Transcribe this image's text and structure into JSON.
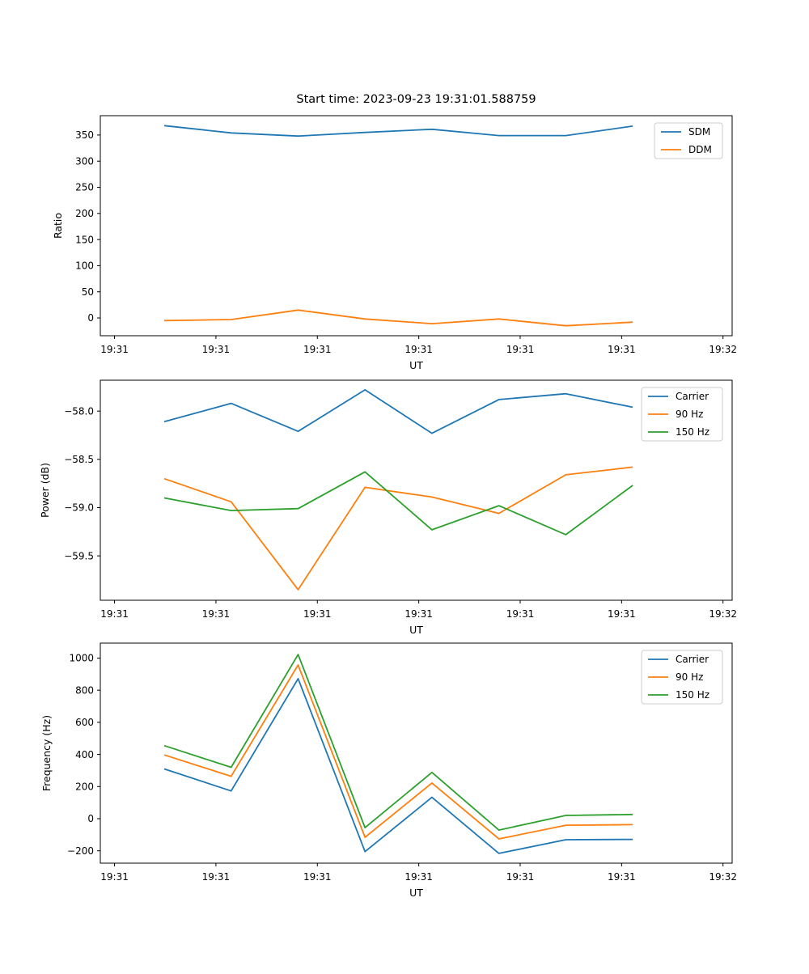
{
  "figure": {
    "background_color": "#ffffff",
    "axis_color": "#000000"
  },
  "chart_data": [
    {
      "type": "line",
      "title": "Start time: 2023-09-23 19:31:01.588759",
      "xlabel": "UT",
      "ylabel": "Ratio",
      "grid": false,
      "legend_position": "upper right",
      "x": {
        "xlim_seconds": [
          -1.4,
          60.9
        ],
        "tick_values_seconds": [
          0,
          10,
          20,
          30,
          40,
          50,
          60
        ],
        "tick_labels": [
          "19:31",
          "19:31",
          "19:31",
          "19:31",
          "19:31",
          "19:31",
          "19:32"
        ],
        "values_seconds": [
          4.9,
          11.5,
          18.1,
          24.7,
          31.3,
          37.9,
          44.5,
          51.1
        ]
      },
      "y": {
        "ylim": [
          -34,
          387
        ],
        "tick_values": [
          0,
          50,
          100,
          150,
          200,
          250,
          300,
          350
        ],
        "tick_labels": [
          "0",
          "50",
          "100",
          "150",
          "200",
          "250",
          "300",
          "350"
        ]
      },
      "series": [
        {
          "name": "SDM",
          "color": "#1f77b4",
          "values": [
            368,
            354,
            348,
            355,
            361,
            349,
            349,
            367
          ]
        },
        {
          "name": "DDM",
          "color": "#ff7f0e",
          "values": [
            -5,
            -3,
            15,
            -2,
            -11,
            -2,
            -15,
            -8
          ]
        }
      ]
    },
    {
      "type": "line",
      "title": "",
      "xlabel": "UT",
      "ylabel": "Power (dB)",
      "grid": false,
      "legend_position": "upper right",
      "x": {
        "xlim_seconds": [
          -1.4,
          60.9
        ],
        "tick_values_seconds": [
          0,
          10,
          20,
          30,
          40,
          50,
          60
        ],
        "tick_labels": [
          "19:31",
          "19:31",
          "19:31",
          "19:31",
          "19:31",
          "19:31",
          "19:32"
        ],
        "values_seconds": [
          4.9,
          11.5,
          18.1,
          24.7,
          31.3,
          37.9,
          44.5,
          51.1
        ]
      },
      "y": {
        "ylim": [
          -59.96,
          -57.68
        ],
        "tick_values": [
          -58.0,
          -58.5,
          -59.0,
          -59.5
        ],
        "tick_labels": [
          "−58.0",
          "−58.5",
          "−59.0",
          "−59.5"
        ]
      },
      "series": [
        {
          "name": "Carrier",
          "color": "#1f77b4",
          "values": [
            -58.11,
            -57.92,
            -58.21,
            -57.78,
            -58.23,
            -57.88,
            -57.82,
            -57.96
          ]
        },
        {
          "name": "90 Hz",
          "color": "#ff7f0e",
          "values": [
            -58.7,
            -58.94,
            -59.85,
            -58.79,
            -58.89,
            -59.06,
            -58.66,
            -58.58
          ]
        },
        {
          "name": "150 Hz",
          "color": "#2ca02c",
          "values": [
            -58.9,
            -59.03,
            -59.01,
            -58.63,
            -59.23,
            -58.98,
            -59.28,
            -58.77
          ]
        }
      ]
    },
    {
      "type": "line",
      "title": "",
      "xlabel": "UT",
      "ylabel": "Frequency (Hz)",
      "grid": false,
      "legend_position": "upper right",
      "x": {
        "xlim_seconds": [
          -1.4,
          60.9
        ],
        "tick_values_seconds": [
          0,
          10,
          20,
          30,
          40,
          50,
          60
        ],
        "tick_labels": [
          "19:31",
          "19:31",
          "19:31",
          "19:31",
          "19:31",
          "19:31",
          "19:32"
        ],
        "values_seconds": [
          4.9,
          11.5,
          18.1,
          24.7,
          31.3,
          37.9,
          44.5,
          51.1
        ]
      },
      "y": {
        "ylim": [
          -277,
          1093
        ],
        "tick_values": [
          -200,
          0,
          200,
          400,
          600,
          800,
          1000
        ],
        "tick_labels": [
          "−200",
          "0",
          "200",
          "400",
          "600",
          "800",
          "1000"
        ]
      },
      "series": [
        {
          "name": "Carrier",
          "color": "#1f77b4",
          "values": [
            310,
            173,
            872,
            -205,
            133,
            -216,
            -131,
            -129
          ]
        },
        {
          "name": "90 Hz",
          "color": "#ff7f0e",
          "values": [
            397,
            264,
            957,
            -116,
            222,
            -126,
            -41,
            -37
          ]
        },
        {
          "name": "150 Hz",
          "color": "#2ca02c",
          "values": [
            455,
            320,
            1022,
            -56,
            288,
            -71,
            20,
            26
          ]
        }
      ]
    }
  ]
}
